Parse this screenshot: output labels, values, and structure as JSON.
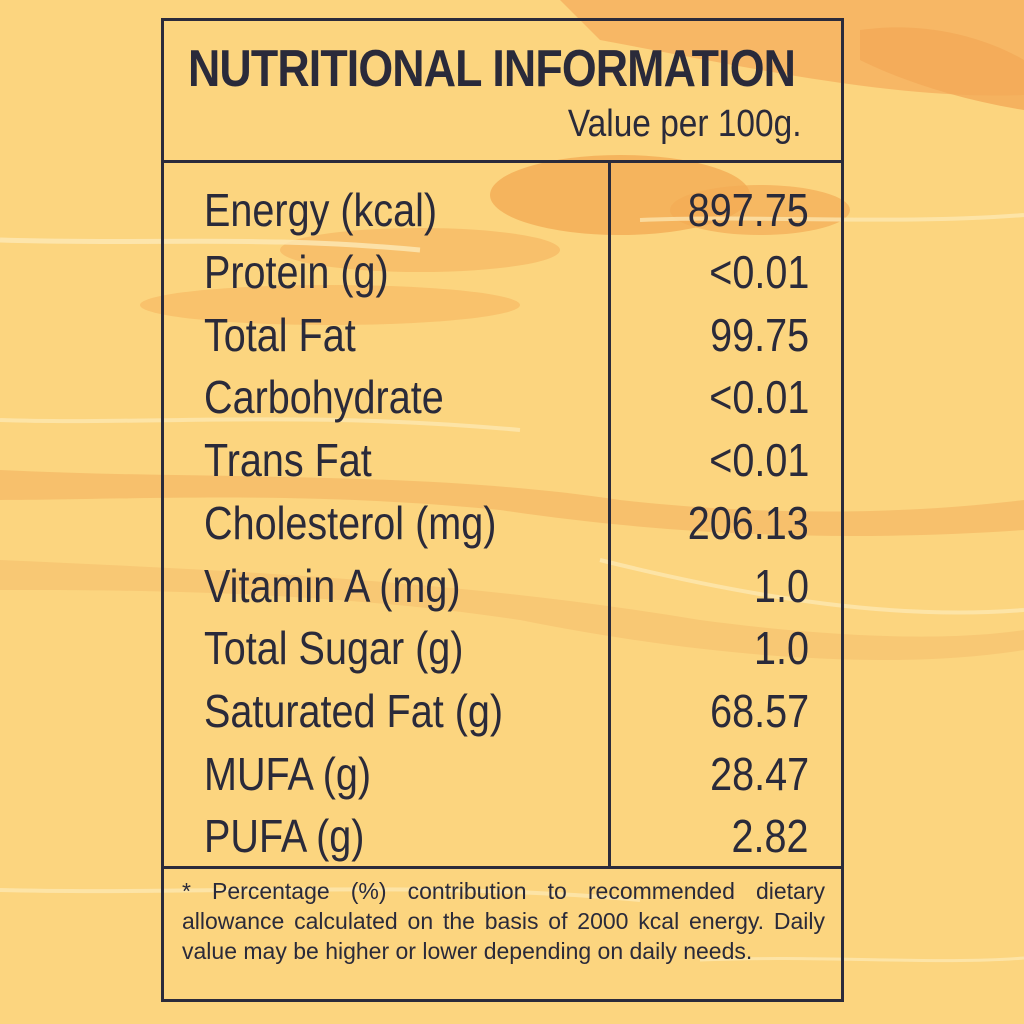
{
  "label": {
    "title": "NUTRITIONAL INFORMATION",
    "subtitle": "Value per 100g.",
    "rows": [
      {
        "label": "Energy (kcal)",
        "value": "897.75"
      },
      {
        "label": "Protein (g)",
        "value": "<0.01"
      },
      {
        "label": "Total Fat",
        "value": "99.75"
      },
      {
        "label": "Carbohydrate",
        "value": "<0.01"
      },
      {
        "label": "Trans Fat",
        "value": "<0.01"
      },
      {
        "label": "Cholesterol (mg)",
        "value": "206.13"
      },
      {
        "label": "Vitamin A (mg)",
        "value": "1.0"
      },
      {
        "label": "Total Sugar (g)",
        "value": "1.0"
      },
      {
        "label": "Saturated Fat (g)",
        "value": "68.57"
      },
      {
        "label": "MUFA (g)",
        "value": "28.47"
      },
      {
        "label": "PUFA (g)",
        "value": "2.82"
      }
    ],
    "footnote": "* Percentage (%) contribution to recommended dietary allowance calculated on the basis of 2000 kcal energy. Daily value may be higher or lower depending on daily needs."
  },
  "colors": {
    "background": "#fcd57f",
    "streak_dark": "#f3ab55",
    "streak_light": "#fde8b0",
    "border": "#2b2b3b",
    "text": "#2a2a3a"
  }
}
